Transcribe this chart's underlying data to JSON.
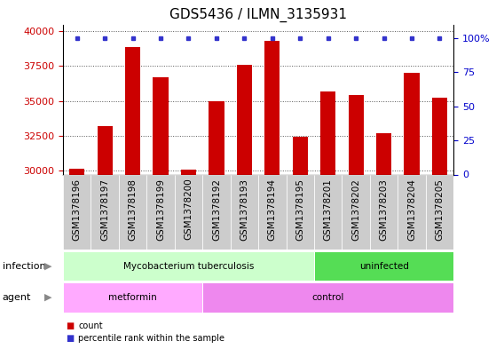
{
  "title": "GDS5436 / ILMN_3135931",
  "samples": [
    "GSM1378196",
    "GSM1378197",
    "GSM1378198",
    "GSM1378199",
    "GSM1378200",
    "GSM1378192",
    "GSM1378193",
    "GSM1378194",
    "GSM1378195",
    "GSM1378201",
    "GSM1378202",
    "GSM1378203",
    "GSM1378204",
    "GSM1378205"
  ],
  "counts": [
    30100,
    33200,
    38900,
    36700,
    30050,
    35000,
    37600,
    39300,
    32400,
    35700,
    35400,
    32700,
    37000,
    35200
  ],
  "percentiles": [
    100,
    100,
    100,
    100,
    100,
    100,
    100,
    100,
    100,
    100,
    100,
    100,
    100,
    100
  ],
  "ylim_left": [
    29700,
    40500
  ],
  "yticks_left": [
    30000,
    32500,
    35000,
    37500,
    40000
  ],
  "ylim_right": [
    0,
    110
  ],
  "yticks_right": [
    0,
    25,
    50,
    75,
    100
  ],
  "bar_color": "#cc0000",
  "dot_color": "#3333cc",
  "bar_width": 0.55,
  "infection_groups": [
    {
      "label": "Mycobacterium tuberculosis",
      "start": 0,
      "end": 8,
      "color": "#ccffcc"
    },
    {
      "label": "uninfected",
      "start": 9,
      "end": 13,
      "color": "#55dd55"
    }
  ],
  "agent_groups": [
    {
      "label": "metformin",
      "start": 0,
      "end": 4,
      "color": "#ffaaff"
    },
    {
      "label": "control",
      "start": 5,
      "end": 13,
      "color": "#ee88ee"
    }
  ],
  "infection_label": "infection",
  "agent_label": "agent",
  "legend_count_color": "#cc0000",
  "legend_dot_color": "#3333cc",
  "legend_count_label": "count",
  "legend_dot_label": "percentile rank within the sample",
  "title_fontsize": 11,
  "tick_fontsize": 8,
  "annotation_fontsize": 9,
  "bg_color": "#ffffff",
  "plot_bg_color": "#ffffff",
  "grid_color": "#555555",
  "left_tick_color": "#cc0000",
  "right_tick_color": "#0000cc",
  "xtick_bg": "#cccccc"
}
